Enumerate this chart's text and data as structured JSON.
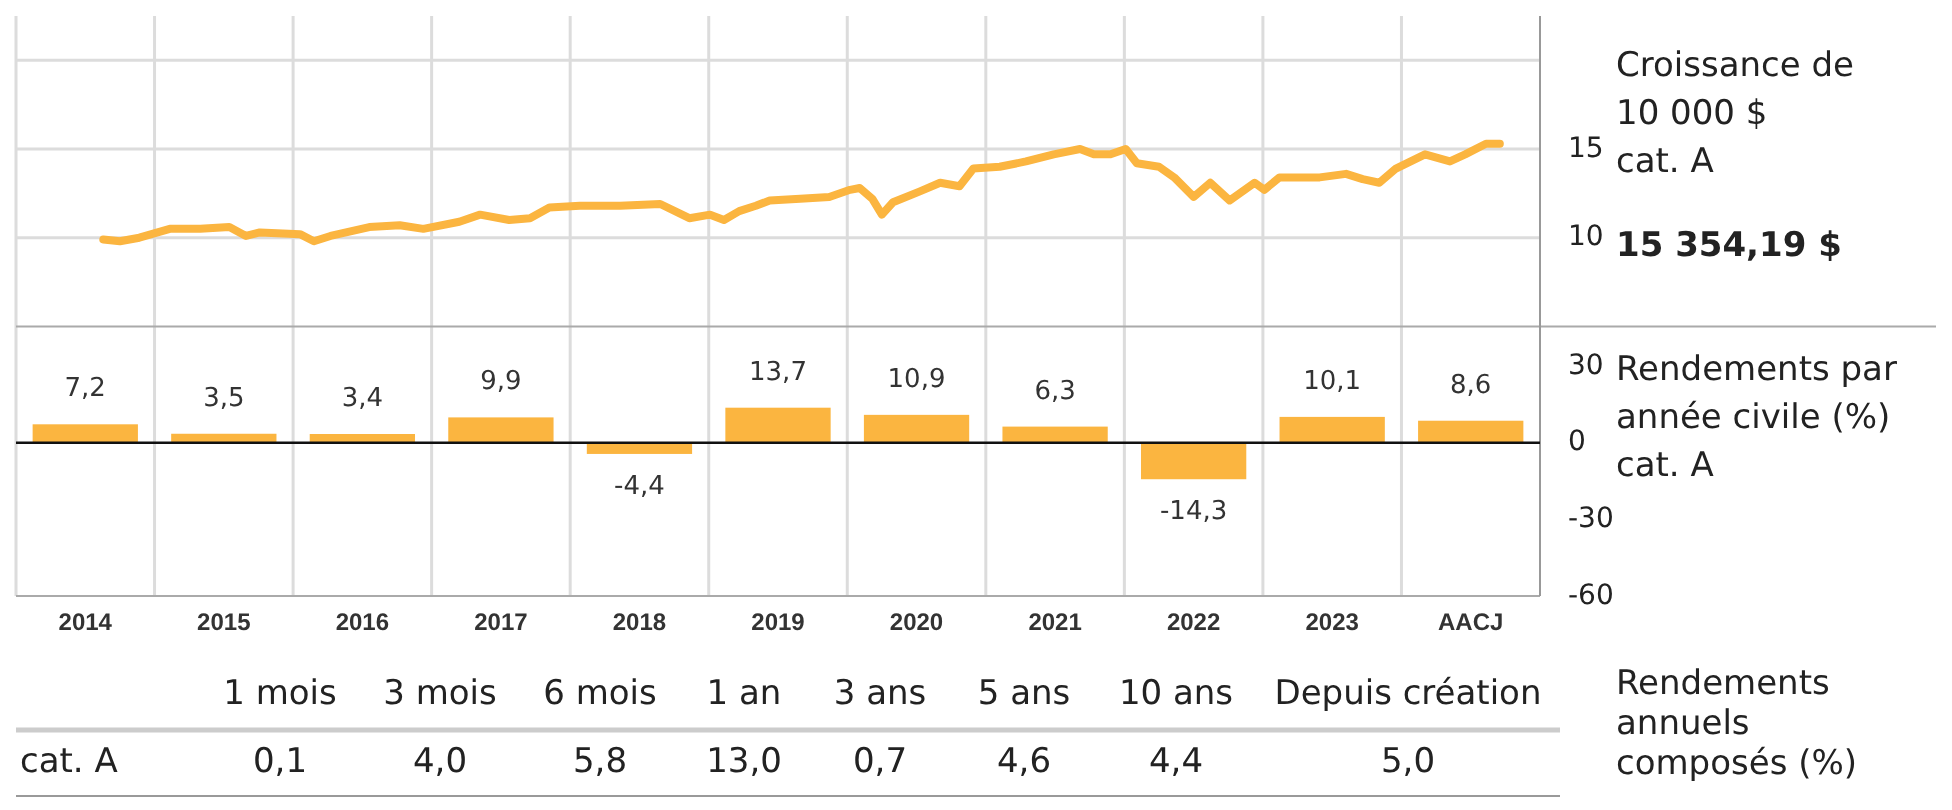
{
  "chart_data": [
    {
      "type": "line",
      "title": "Croissance de\n10 000 $\ncat. A",
      "y2label": "Rendements par\nannée civile (%)\ncat. A",
      "annotations": [
        "15 354,19 $"
      ],
      "xlim": [
        2014,
        2025
      ],
      "xticks": [
        {
          "value": 2014.5,
          "label": "2014"
        },
        {
          "value": 2015,
          "label": null
        },
        {
          "value": 2015.5,
          "label": "2015"
        },
        {
          "value": 2016,
          "label": null
        },
        {
          "value": 2016.5,
          "label": "2016"
        },
        {
          "value": 2017,
          "label": null
        },
        {
          "value": 2017.5,
          "label": "2017"
        },
        {
          "value": 2018,
          "label": null
        },
        {
          "value": 2018.5,
          "label": "2018"
        },
        {
          "value": 2019,
          "label": null
        },
        {
          "value": 2019.5,
          "label": "2019"
        },
        {
          "value": 2020,
          "label": null
        },
        {
          "value": 2020.5,
          "label": "2020"
        },
        {
          "value": 2021,
          "label": null
        },
        {
          "value": 2021.5,
          "label": "2021"
        },
        {
          "value": 2022,
          "label": null
        },
        {
          "value": 2022.5,
          "label": "2022"
        },
        {
          "value": 2023,
          "label": null
        },
        {
          "value": 2023.5,
          "label": "2023"
        },
        {
          "value": 2024,
          "label": null
        },
        {
          "value": 2024.5,
          "label": "AACJ"
        }
      ],
      "ylim": [
        -10.2,
        22.5
      ],
      "yticks": [
        {
          "value": 20,
          "label": null
        },
        15,
        10
      ],
      "y2lim": [
        -60,
        167
      ],
      "y2ticks": [
        30,
        0,
        -30,
        -60
      ],
      "grid": true,
      "ref_lines": [
        {
          "axis": "y",
          "value": 5,
          "color": "#aaaaaa"
        }
      ],
      "line_style": "solid",
      "marker": "none",
      "series": [
        {
          "type": "line",
          "color": "#fbb540",
          "x": [
            2014.63,
            2014.75,
            2014.89,
            2015.11,
            2015.33,
            2015.54,
            2015.66,
            2015.76,
            2016.05,
            2016.15,
            2016.27,
            2016.55,
            2016.77,
            2016.94,
            2017.2,
            2017.35,
            2017.56,
            2017.71,
            2017.85,
            2018.07,
            2018.36,
            2018.65,
            2018.86,
            2019.01,
            2019.11,
            2019.22,
            2019.34,
            2019.44,
            2019.66,
            2019.87,
            2020.02,
            2020.09,
            2020.18,
            2020.25,
            2020.33,
            2020.52,
            2020.67,
            2020.81,
            2020.91,
            2021.1,
            2021.29,
            2021.49,
            2021.68,
            2021.78,
            2021.9,
            2022.01,
            2022.09,
            2022.25,
            2022.36,
            2022.5,
            2022.62,
            2022.76,
            2022.94,
            2023.01,
            2023.12,
            2023.41,
            2023.6,
            2023.72,
            2023.84,
            2023.96,
            2024.17,
            2024.35,
            2024.46,
            2024.61,
            2024.71
          ],
          "values": [
            9.9,
            9.8,
            10.0,
            10.5,
            10.5,
            10.6,
            10.1,
            10.3,
            10.2,
            9.8,
            10.1,
            10.6,
            10.7,
            10.5,
            10.9,
            11.3,
            11.0,
            11.1,
            11.7,
            11.8,
            11.8,
            11.9,
            11.1,
            11.3,
            11.0,
            11.5,
            11.8,
            12.1,
            12.2,
            12.3,
            12.7,
            12.8,
            12.2,
            11.3,
            12.0,
            12.6,
            13.1,
            12.9,
            13.9,
            14.0,
            14.3,
            14.7,
            15.0,
            14.7,
            14.7,
            15.0,
            14.2,
            14.0,
            13.4,
            12.3,
            13.1,
            12.1,
            13.1,
            12.7,
            13.4,
            13.4,
            13.6,
            13.3,
            13.1,
            13.9,
            14.7,
            14.3,
            14.7,
            15.3,
            15.3
          ]
        },
        {
          "type": "bar",
          "axis": "y2",
          "color": "#fbb540",
          "x": [
            2014.5,
            2015.5,
            2016.5,
            2017.5,
            2018.5,
            2019.5,
            2020.5,
            2021.5,
            2022.5,
            2023.5,
            2024.5
          ],
          "values": [
            7.2,
            3.5,
            3.4,
            9.9,
            -4.4,
            13.7,
            10.9,
            6.3,
            -14.3,
            10.1,
            8.6
          ],
          "value_labels": [
            "7,2",
            "3,5",
            "3,4",
            "9,9",
            "-4,4",
            "13,7",
            "10,9",
            "6,3",
            "-14,3",
            "10,1",
            "8,6"
          ]
        }
      ]
    },
    {
      "type": "other",
      "title": "Rendements\nannuels\ncomposés (%)",
      "categories": [
        "1 mois",
        "3 mois",
        "6 mois",
        "1 an",
        "3 ans",
        "5 ans",
        "10 ans",
        "Depuis création"
      ],
      "series": [
        {
          "name": "cat. A",
          "values": [
            0.1,
            4.0,
            5.8,
            13.0,
            0.7,
            4.6,
            4.4,
            5.0
          ],
          "value_labels": [
            "0,1",
            "4,0",
            "5,8",
            "13,0",
            "0,7",
            "4,6",
            "4,4",
            "5,0"
          ]
        }
      ]
    }
  ]
}
